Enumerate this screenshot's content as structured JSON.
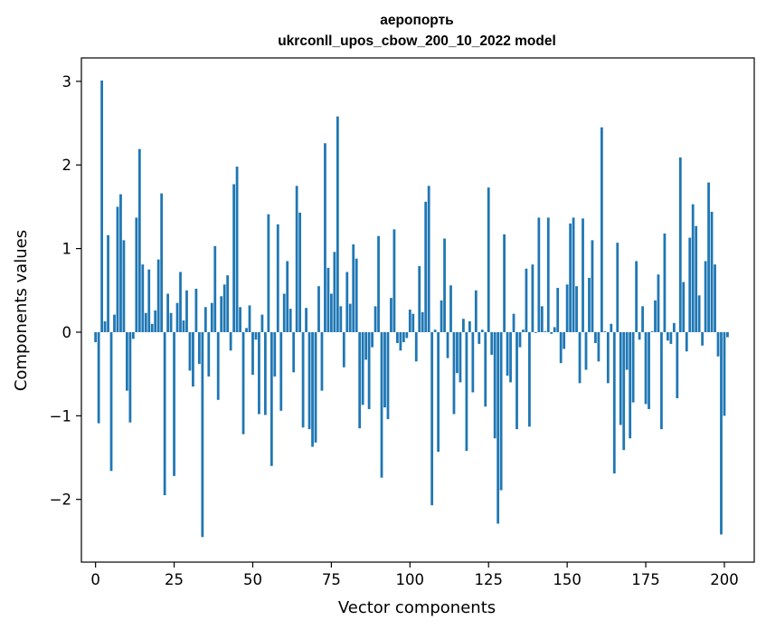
{
  "chart_data": {
    "type": "bar",
    "title": "аеропорть",
    "subtitle": "ukrconll_upos_cbow_200_10_2022 model",
    "xlabel": "Vector components",
    "ylabel": "Components values",
    "xlim": [
      -4.5,
      209.5
    ],
    "ylim": [
      -2.75,
      3.28
    ],
    "xticks": [
      0,
      25,
      50,
      75,
      100,
      125,
      150,
      175,
      200
    ],
    "yticks": [
      -2,
      -1,
      0,
      1,
      2,
      3
    ],
    "xtick_labels": [
      "0",
      "25",
      "50",
      "75",
      "100",
      "125",
      "150",
      "175",
      "200"
    ],
    "ytick_labels": [
      "−2",
      "−1",
      "0",
      "1",
      "2",
      "3"
    ],
    "bar_color": "#1f77b4",
    "grid": false,
    "values": [
      -0.12,
      -1.09,
      3.01,
      0.13,
      1.16,
      -1.66,
      0.21,
      1.5,
      1.65,
      1.1,
      -0.7,
      -1.08,
      -0.08,
      1.37,
      2.19,
      0.81,
      0.23,
      0.75,
      0.1,
      0.26,
      0.87,
      1.66,
      -1.95,
      0.46,
      0.23,
      -1.72,
      0.35,
      0.72,
      0.14,
      0.5,
      -0.46,
      -0.65,
      0.52,
      -0.38,
      -2.45,
      0.3,
      -0.53,
      0.35,
      1.03,
      -0.81,
      0.43,
      0.57,
      0.68,
      -0.22,
      1.77,
      1.98,
      0.3,
      -1.22,
      0.05,
      0.32,
      -0.51,
      -0.09,
      -0.98,
      0.21,
      -0.99,
      1.41,
      -1.6,
      -0.53,
      1.29,
      -0.94,
      0.46,
      0.85,
      0.28,
      -0.48,
      1.75,
      1.43,
      -1.14,
      0.29,
      -1.16,
      -1.37,
      -1.32,
      0.55,
      -0.7,
      2.26,
      0.77,
      0.46,
      0.96,
      2.58,
      0.31,
      -0.42,
      0.72,
      0.34,
      1.05,
      0.88,
      -1.15,
      -0.87,
      -0.33,
      -0.92,
      -0.18,
      0.31,
      1.15,
      -1.74,
      -0.9,
      -1.04,
      0.41,
      1.23,
      -0.13,
      -0.22,
      -0.12,
      -0.07,
      0.27,
      0.22,
      -0.35,
      0.79,
      0.24,
      1.56,
      1.75,
      -2.07,
      0.03,
      -1.43,
      0.38,
      1.12,
      -0.31,
      0.56,
      -0.98,
      -0.49,
      -0.6,
      0.16,
      -1.42,
      0.13,
      -0.72,
      0.5,
      -0.14,
      0.03,
      -0.89,
      1.73,
      -0.27,
      -1.27,
      -2.29,
      -1.89,
      1.17,
      -0.52,
      -0.6,
      0.22,
      -1.16,
      -0.18,
      0.03,
      0.76,
      -1.13,
      0.81,
      -0.01,
      1.37,
      0.31,
      0.01,
      1.37,
      -0.02,
      0.06,
      0.53,
      -0.37,
      -0.2,
      0.57,
      1.3,
      1.37,
      0.55,
      -0.61,
      1.36,
      -0.45,
      0.65,
      1.1,
      -0.13,
      -0.35,
      2.45,
      0.01,
      -0.61,
      0.1,
      -1.69,
      1.07,
      -1.11,
      -1.41,
      -0.45,
      -1.27,
      -0.84,
      0.85,
      -0.09,
      0.31,
      -0.86,
      -0.92,
      0.01,
      0.38,
      0.69,
      -1.16,
      1.18,
      -0.1,
      -0.14,
      0.11,
      -0.79,
      2.09,
      0.6,
      -0.23,
      1.13,
      1.53,
      1.27,
      0.44,
      -0.16,
      0.85,
      1.79,
      1.44,
      0.81,
      -0.29,
      -2.42,
      -1.0,
      -0.06
    ]
  }
}
